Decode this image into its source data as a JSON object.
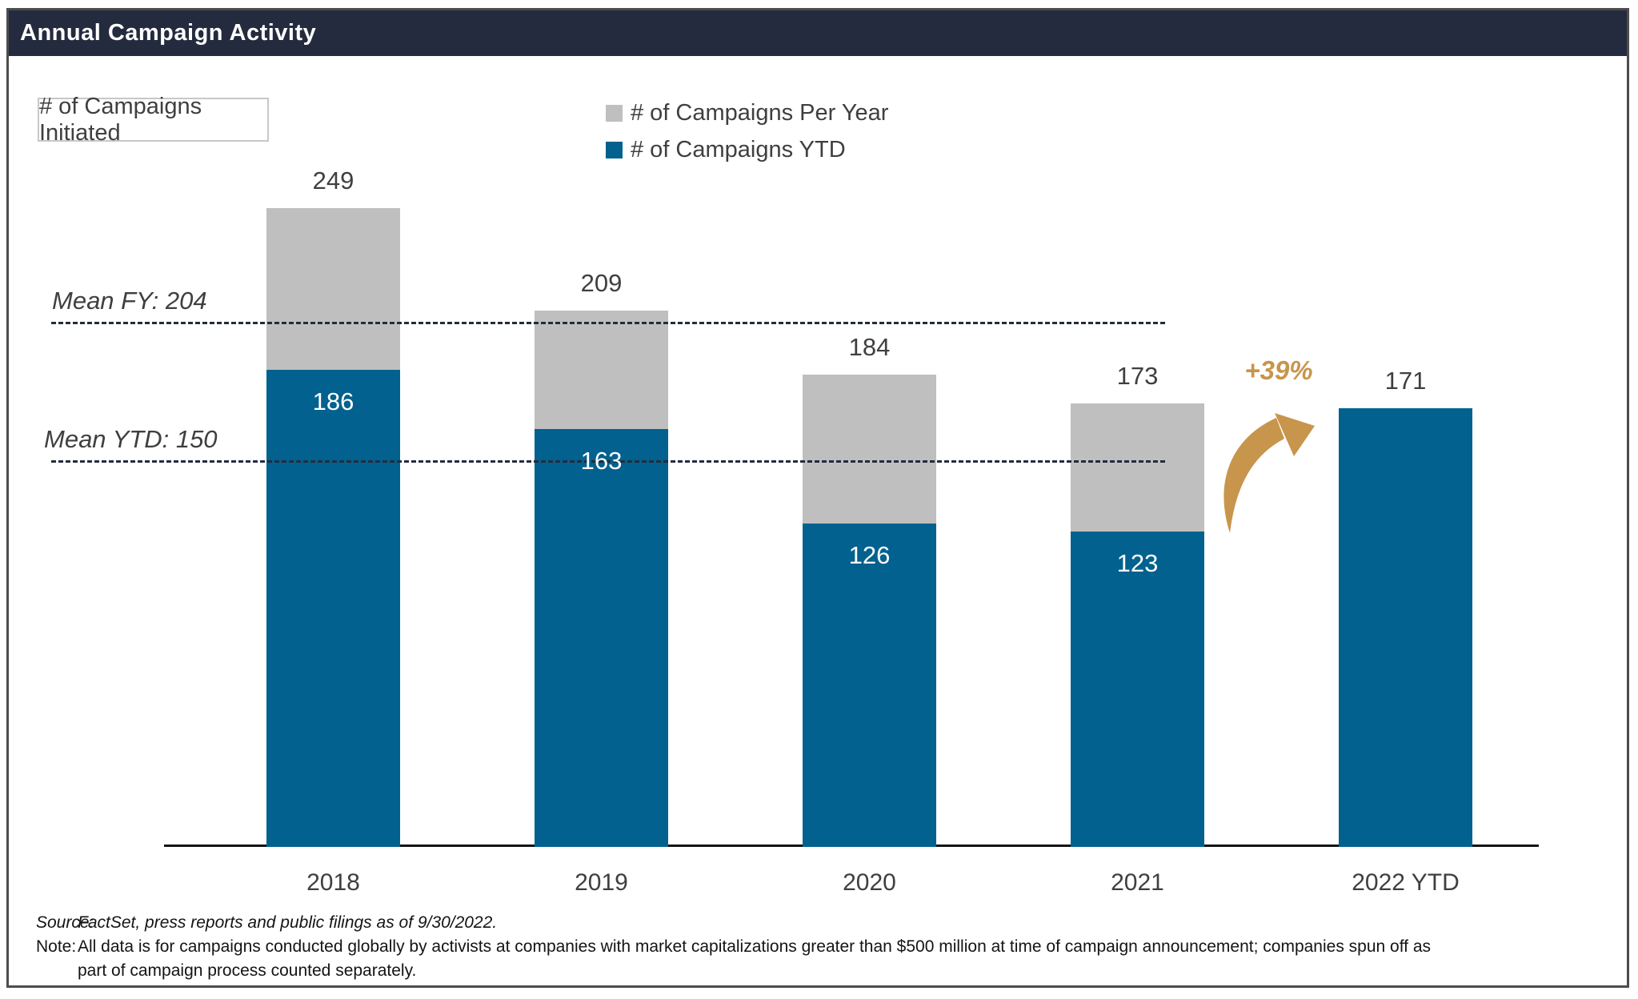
{
  "header": {
    "title": "Annual Campaign Activity"
  },
  "colors": {
    "fy_bar": "#BFBFBF",
    "ytd_bar": "#02618E",
    "gold": "#C8954C",
    "navy": "#242B3E"
  },
  "legend": {
    "fy_label": "# of Campaigns Per Year",
    "ytd_label": "# of Campaigns YTD"
  },
  "chart_data": {
    "type": "bar",
    "stacked": true,
    "title": "Annual Campaign Activity",
    "units_box_label": "# of Campaigns Initiated",
    "categories": [
      "2018",
      "2019",
      "2020",
      "2021",
      "2022 YTD"
    ],
    "series": [
      {
        "name": "# of Campaigns Per Year",
        "color": "#BFBFBF",
        "values": [
          249,
          209,
          184,
          173,
          null
        ]
      },
      {
        "name": "# of Campaigns YTD",
        "color": "#02618E",
        "values": [
          186,
          163,
          126,
          123,
          171
        ]
      }
    ],
    "total_labels": [
      "249",
      "209",
      "184",
      "173",
      "171"
    ],
    "ytd_inside_labels": [
      "186",
      "163",
      "126",
      "123",
      null
    ],
    "mean_lines": [
      {
        "label": "Mean FY: 204",
        "value": 204
      },
      {
        "label": "Mean YTD: 150",
        "value": 150
      }
    ],
    "annotation": {
      "text": "+39%"
    },
    "ylim": [
      0,
      260
    ],
    "legend_position": "top",
    "grid": false
  },
  "footer": {
    "source_label": "Source:",
    "source_text": "FactSet, press reports and public filings as of 9/30/2022.",
    "note_label": "Note:",
    "note_line1": "All data is for campaigns conducted globally by activists at companies with market capitalizations greater than $500 million at time of campaign announcement; companies spun off as",
    "note_line2": "part of campaign process counted separately."
  }
}
